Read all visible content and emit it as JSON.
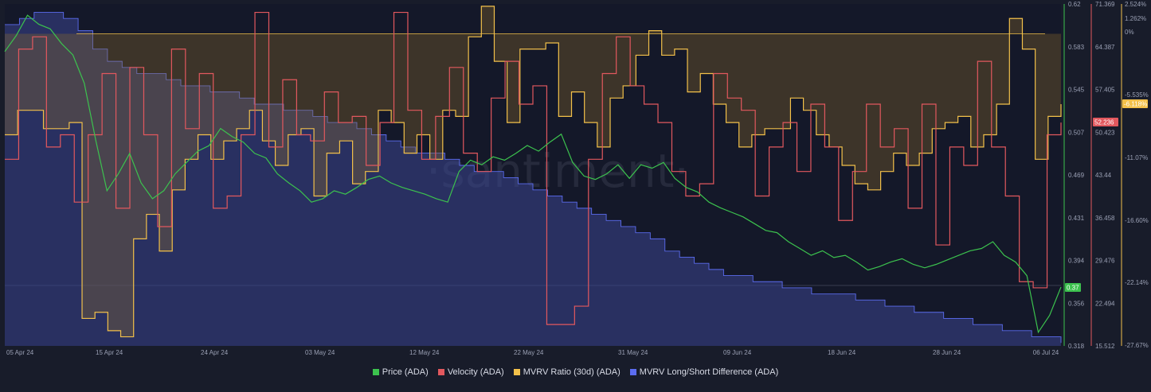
{
  "watermark": "·santiment·",
  "legend": [
    {
      "label": "Price (ADA)",
      "color": "#3cc24e"
    },
    {
      "label": "Velocity (ADA)",
      "color": "#e2585e"
    },
    {
      "label": "MVRV Ratio (30d) (ADA)",
      "color": "#f2c04a"
    },
    {
      "label": "MVRV Long/Short Difference (ADA)",
      "color": "#5b6cf0"
    }
  ],
  "chart_data": {
    "type": "line",
    "x_ticks": [
      "05 Apr 24",
      "15 Apr 24",
      "24 Apr 24",
      "03 May 24",
      "12 May 24",
      "22 May 24",
      "31 May 24",
      "09 Jun 24",
      "18 Jun 24",
      "28 Jun 24",
      "06 Jul 24"
    ],
    "axes": {
      "price": {
        "ticks": [
          "0.62",
          "0.583",
          "0.545",
          "0.507",
          "0.469",
          "0.431",
          "0.394",
          "0.356",
          "0.318"
        ],
        "range": [
          0.318,
          0.62
        ],
        "color": "#3cc24e"
      },
      "velocity": {
        "ticks": [
          "71.369",
          "64.387",
          "57.405",
          "50.423",
          "43.44",
          "36.458",
          "29.476",
          "22.494",
          "15.512"
        ],
        "range": [
          15.512,
          71.369
        ],
        "color": "#e2585e"
      },
      "mvrv": {
        "ticks": [
          "2.524%",
          "1.262%",
          "0%",
          "-5.535%",
          "-11.07%",
          "-16.60%",
          "-22.14%",
          "-27.67%"
        ],
        "color": "#f2c04a"
      }
    },
    "current_values": {
      "price": "0.37",
      "velocity": "52.236",
      "mvrv": "-6.118%"
    },
    "series": [
      {
        "name": "Price (ADA)",
        "axis": "price",
        "style": "line",
        "values": [
          0.578,
          0.592,
          0.61,
          0.602,
          0.598,
          0.585,
          0.575,
          0.55,
          0.5,
          0.455,
          0.47,
          0.488,
          0.462,
          0.448,
          0.455,
          0.47,
          0.48,
          0.49,
          0.495,
          0.51,
          0.503,
          0.498,
          0.488,
          0.484,
          0.47,
          0.462,
          0.455,
          0.445,
          0.448,
          0.455,
          0.452,
          0.458,
          0.465,
          0.468,
          0.462,
          0.458,
          0.455,
          0.452,
          0.448,
          0.445,
          0.472,
          0.482,
          0.478,
          0.485,
          0.482,
          0.488,
          0.495,
          0.49,
          0.498,
          0.505,
          0.48,
          0.468,
          0.465,
          0.47,
          0.478,
          0.466,
          0.478,
          0.475,
          0.48,
          0.466,
          0.458,
          0.454,
          0.445,
          0.44,
          0.436,
          0.432,
          0.426,
          0.42,
          0.418,
          0.41,
          0.404,
          0.398,
          0.402,
          0.396,
          0.398,
          0.392,
          0.385,
          0.388,
          0.392,
          0.395,
          0.39,
          0.387,
          0.39,
          0.394,
          0.398,
          0.402,
          0.404,
          0.41,
          0.398,
          0.392,
          0.38,
          0.33,
          0.345,
          0.37
        ],
        "y_fill": false
      },
      {
        "name": "Velocity (ADA)",
        "axis": "velocity",
        "style": "step",
        "values": [
          46,
          64,
          66,
          48,
          50,
          39,
          50,
          60,
          38,
          61,
          50,
          35,
          64,
          51,
          60,
          38,
          40,
          50,
          70,
          48,
          59,
          50,
          49,
          57,
          52,
          53,
          45,
          52,
          70,
          54,
          46,
          53,
          61,
          47,
          44,
          56,
          62,
          55,
          58,
          19,
          19,
          22,
          46,
          60,
          66,
          58,
          55,
          52,
          44,
          40,
          42,
          60,
          56,
          54,
          40,
          48,
          52,
          44,
          55,
          48,
          36,
          44,
          55,
          48,
          51,
          38,
          55,
          32,
          48,
          45,
          62,
          48,
          40,
          26,
          25,
          50,
          52
        ],
        "y_fill": false
      },
      {
        "name": "MVRV Ratio (30d) (ADA)",
        "axis": "velocity",
        "style": "step",
        "values": [
          50,
          54,
          54,
          51,
          51,
          52,
          20,
          21,
          18,
          17,
          33,
          37,
          31,
          41,
          46,
          50,
          46,
          49,
          51,
          54,
          49,
          45,
          50,
          51,
          40,
          47,
          49,
          42,
          44,
          54,
          52,
          47,
          50,
          46,
          54,
          53,
          66,
          71,
          62,
          52,
          64,
          64,
          65,
          53,
          57,
          52,
          48,
          56,
          58,
          63,
          67,
          63,
          64,
          57,
          60,
          55,
          52,
          48,
          50,
          51,
          51,
          56,
          54,
          50,
          48,
          45,
          42,
          41,
          44,
          47,
          45,
          47,
          51,
          52,
          53,
          48,
          50,
          55,
          69,
          64,
          46,
          53,
          55
        ],
        "y_fill": true,
        "fill_baseline": 66.5
      },
      {
        "name": "MVRV Long/Short Difference (ADA)",
        "axis": "velocity",
        "style": "area",
        "values": [
          68,
          69,
          70,
          70,
          69,
          67,
          64,
          62,
          61,
          60,
          60,
          59,
          58,
          58,
          57,
          57,
          56,
          55,
          55,
          54,
          54,
          53,
          52,
          52,
          51,
          50,
          49,
          48,
          47,
          47,
          46,
          45,
          44,
          44,
          43,
          42,
          41,
          40,
          39,
          38,
          37,
          36,
          35,
          34,
          33,
          31,
          30,
          29,
          28,
          27,
          27,
          26,
          26,
          25,
          25,
          24,
          24,
          24,
          23,
          23,
          22,
          22,
          21,
          21,
          20,
          20,
          19,
          19,
          18,
          18,
          17,
          17,
          16
        ],
        "y_fill": true
      }
    ]
  }
}
